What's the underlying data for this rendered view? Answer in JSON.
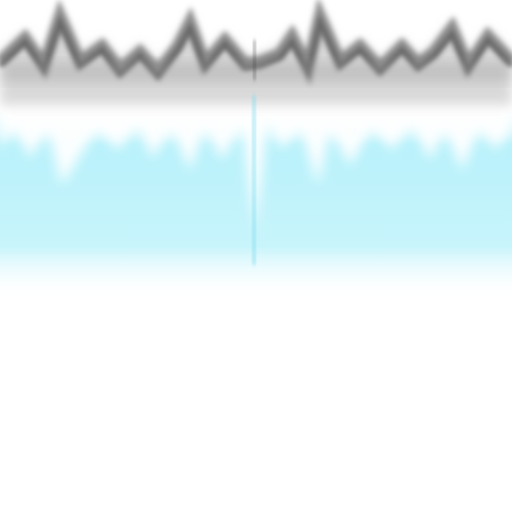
{
  "texture": {
    "description_colors": {
      "background": "#ffffff",
      "ridge_dark": "#7a7a7a",
      "ridge_mid": "#b5b5b5",
      "cyan_band": "#b8f1fb",
      "cyan_seam": "#7fdcef"
    },
    "icons": []
  }
}
